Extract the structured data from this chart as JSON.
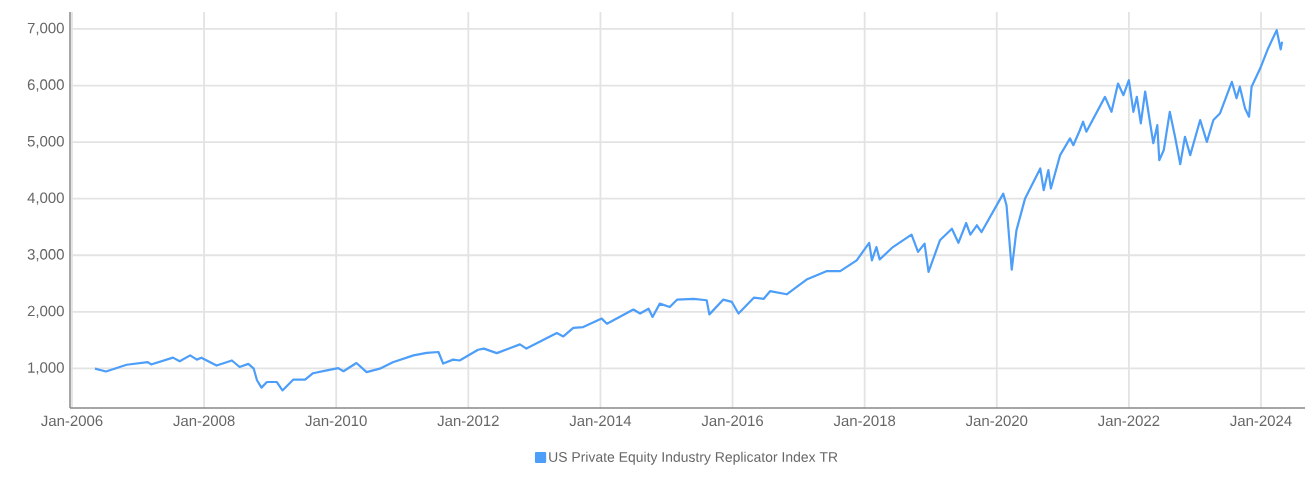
{
  "chart_data": {
    "type": "line",
    "xlim": [
      "2005-12-21",
      "2024-09-01"
    ],
    "ylim": [
      300,
      7300
    ],
    "xticks": [
      {
        "value": "2006-01-01",
        "label": "Jan-2006"
      },
      {
        "value": "2008-01-01",
        "label": "Jan-2008"
      },
      {
        "value": "2010-01-01",
        "label": "Jan-2010"
      },
      {
        "value": "2012-01-01",
        "label": "Jan-2012"
      },
      {
        "value": "2014-01-01",
        "label": "Jan-2014"
      },
      {
        "value": "2016-01-01",
        "label": "Jan-2016"
      },
      {
        "value": "2018-01-01",
        "label": "Jan-2018"
      },
      {
        "value": "2020-01-01",
        "label": "Jan-2020"
      },
      {
        "value": "2022-01-01",
        "label": "Jan-2022"
      },
      {
        "value": "2024-01-01",
        "label": "Jan-2024"
      }
    ],
    "yticks": [
      {
        "value": 1000,
        "label": "1,000"
      },
      {
        "value": 2000,
        "label": "2,000"
      },
      {
        "value": 3000,
        "label": "3,000"
      },
      {
        "value": 4000,
        "label": "4,000"
      },
      {
        "value": 5000,
        "label": "5,000"
      },
      {
        "value": 6000,
        "label": "6,000"
      },
      {
        "value": 7000,
        "label": "7,000"
      }
    ],
    "grid": true,
    "legend": "bottom",
    "marker": "none",
    "line_style": "solid",
    "series": [
      {
        "name": "US Private Equity Industry Replicator Index TR",
        "color": "#4d9ef9",
        "x": [
          "2006-05-08",
          "2006-07-08",
          "2006-10-30",
          "2007-02-24",
          "2007-03-14",
          "2007-07-13",
          "2007-08-19",
          "2007-10-16",
          "2007-11-22",
          "2007-12-17",
          "2008-03-10",
          "2008-06-03",
          "2008-07-16",
          "2008-09-02",
          "2008-10-02",
          "2008-10-20",
          "2008-11-14",
          "2008-12-14",
          "2009-02-06",
          "2009-03-10",
          "2009-05-08",
          "2009-07-13",
          "2009-08-26",
          "2009-11-10",
          "2010-01-12",
          "2010-02-10",
          "2010-04-23",
          "2010-06-18",
          "2010-08-30",
          "2010-11-10",
          "2011-03-04",
          "2011-05-16",
          "2011-07-20",
          "2011-08-15",
          "2011-10-09",
          "2011-11-14",
          "2012-02-24",
          "2012-03-27",
          "2012-06-07",
          "2012-10-13",
          "2012-11-18",
          "2013-05-05",
          "2013-06-10",
          "2013-08-04",
          "2013-09-28",
          "2014-01-08",
          "2014-02-06",
          "2014-07-02",
          "2014-08-08",
          "2014-09-24",
          "2014-10-16",
          "2014-11-25",
          "2015-01-19",
          "2015-02-28",
          "2015-05-31",
          "2015-08-11",
          "2015-08-26",
          "2015-11-10",
          "2015-12-28",
          "2016-02-03",
          "2016-04-28",
          "2016-06-22",
          "2016-07-27",
          "2016-10-27",
          "2017-02-14",
          "2017-06-07",
          "2017-08-19",
          "2017-11-18",
          "2018-01-26",
          "2018-02-10",
          "2018-03-07",
          "2018-03-25",
          "2018-06-06",
          "2018-09-17",
          "2018-10-23",
          "2018-11-28",
          "2018-12-20",
          "2019-02-21",
          "2019-04-28",
          "2019-06-03",
          "2019-07-16",
          "2019-08-08",
          "2019-09-13",
          "2019-10-09",
          "2020-02-06",
          "2020-02-24",
          "2020-03-24",
          "2020-04-19",
          "2020-06-06",
          "2020-08-29",
          "2020-09-17",
          "2020-10-13",
          "2020-10-27",
          "2020-12-17",
          "2021-02-10",
          "2021-02-28",
          "2021-04-05",
          "2021-04-23",
          "2021-05-11",
          "2021-08-22",
          "2021-09-27",
          "2021-11-02",
          "2021-12-02",
          "2022-01-01",
          "2022-01-26",
          "2022-02-14",
          "2022-03-08",
          "2022-04-01",
          "2022-05-16",
          "2022-06-07",
          "2022-06-18",
          "2022-07-13",
          "2022-08-15",
          "2022-09-13",
          "2022-10-12",
          "2022-11-07",
          "2022-12-06",
          "2023-01-30",
          "2023-03-08",
          "2023-04-13",
          "2023-05-19",
          "2023-07-24",
          "2023-08-19",
          "2023-09-06",
          "2023-10-05",
          "2023-10-27",
          "2023-11-10",
          "2023-12-28",
          "2024-02-10",
          "2024-03-28",
          "2024-04-19",
          "2024-04-27"
        ],
        "values": [
          995,
          945,
          1065,
          1110,
          1070,
          1190,
          1125,
          1230,
          1155,
          1190,
          1050,
          1140,
          1025,
          1080,
          995,
          790,
          660,
          760,
          760,
          610,
          800,
          800,
          915,
          965,
          1005,
          950,
          1095,
          935,
          995,
          1110,
          1230,
          1275,
          1290,
          1085,
          1155,
          1140,
          1330,
          1350,
          1270,
          1425,
          1350,
          1625,
          1565,
          1715,
          1730,
          1880,
          1790,
          2040,
          1970,
          2055,
          1910,
          2145,
          2085,
          2215,
          2230,
          2205,
          1955,
          2215,
          2175,
          1970,
          2250,
          2230,
          2365,
          2310,
          2570,
          2720,
          2720,
          2910,
          3220,
          2910,
          3145,
          2925,
          3145,
          3365,
          3060,
          3205,
          2705,
          3265,
          3470,
          3220,
          3570,
          3365,
          3530,
          3410,
          4090,
          3885,
          2745,
          3440,
          4005,
          4535,
          4150,
          4505,
          4180,
          4770,
          5065,
          4945,
          5210,
          5360,
          5185,
          5800,
          5535,
          6035,
          5830,
          6095,
          5535,
          5800,
          5330,
          5895,
          4980,
          5300,
          4680,
          4860,
          5535,
          5095,
          4610,
          5095,
          4770,
          5390,
          5005,
          5390,
          5505,
          6065,
          5775,
          5980,
          5595,
          5450,
          5980,
          6305,
          6660,
          6980,
          6640,
          6775
        ]
      }
    ]
  }
}
